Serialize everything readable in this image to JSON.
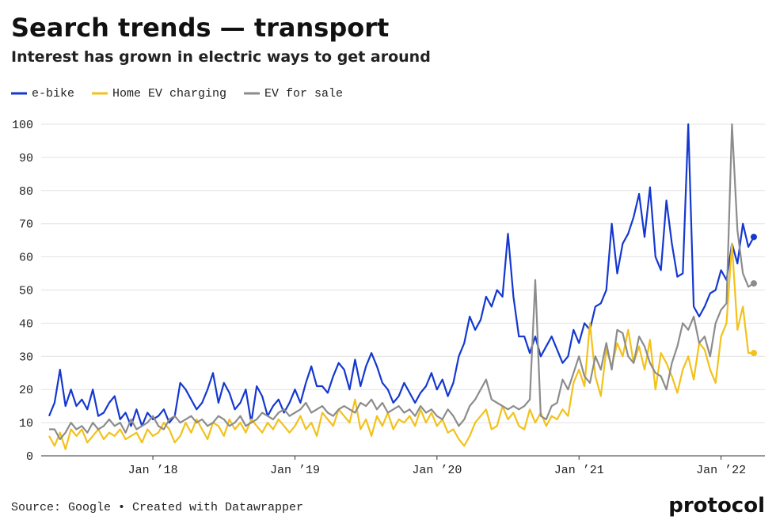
{
  "chart_data": {
    "type": "line",
    "title": "Search trends — transport",
    "subtitle": "Interest has grown in electric ways to get around",
    "source": "Source: Google • Created with Datawrapper",
    "brand": "protocol",
    "categories": [
      null,
      null,
      null,
      null,
      null,
      null,
      null,
      null,
      null,
      null,
      null,
      null,
      null,
      null,
      null,
      null,
      null,
      null,
      null,
      "Jan ’18",
      null,
      null,
      null,
      null,
      null,
      null,
      null,
      null,
      null,
      null,
      null,
      null,
      null,
      null,
      null,
      null,
      null,
      null,
      null,
      null,
      null,
      null,
      null,
      null,
      null,
      "Jan ’19",
      null,
      null,
      null,
      null,
      null,
      null,
      null,
      null,
      null,
      null,
      null,
      null,
      null,
      null,
      null,
      null,
      null,
      null,
      null,
      null,
      null,
      null,
      null,
      null,
      null,
      "Jan ’20",
      null,
      null,
      null,
      null,
      null,
      null,
      null,
      null,
      null,
      null,
      null,
      null,
      null,
      null,
      null,
      null,
      null,
      null,
      null,
      null,
      null,
      null,
      null,
      null,
      null,
      "Jan ’21",
      null,
      null,
      null,
      null,
      null,
      null,
      null,
      null,
      null,
      null,
      null,
      null,
      null,
      null,
      null,
      null,
      null,
      null,
      null,
      null,
      null,
      null,
      null,
      null,
      null,
      "Jan ’22",
      null,
      null,
      null,
      null,
      null,
      null
    ],
    "series": [
      {
        "name": "e-bike",
        "color": "#1438d0",
        "values": [
          12,
          16,
          26,
          15,
          20,
          15,
          17,
          14,
          20,
          12,
          13,
          16,
          18,
          11,
          13,
          9,
          14,
          9,
          13,
          11,
          12,
          14,
          10,
          12,
          22,
          20,
          17,
          14,
          16,
          20,
          25,
          16,
          22,
          19,
          14,
          16,
          20,
          10,
          21,
          18,
          12,
          15,
          17,
          13,
          16,
          20,
          16,
          22,
          27,
          21,
          21,
          19,
          24,
          28,
          26,
          20,
          29,
          21,
          27,
          31,
          27,
          22,
          20,
          16,
          18,
          22,
          19,
          16,
          19,
          21,
          25,
          20,
          23,
          18,
          22,
          30,
          34,
          42,
          38,
          41,
          48,
          45,
          50,
          48,
          67,
          48,
          36,
          36,
          31,
          36,
          30,
          33,
          36,
          32,
          28,
          30,
          38,
          34,
          40,
          38,
          45,
          46,
          50,
          70,
          55,
          64,
          67,
          72,
          79,
          66,
          81,
          60,
          56,
          77,
          64,
          54,
          55,
          100,
          45,
          42,
          45,
          49,
          50,
          56,
          53,
          64,
          58,
          70,
          63,
          66
        ]
      },
      {
        "name": "Home EV charging",
        "color": "#f2c21b",
        "values": [
          6,
          3,
          7,
          2,
          8,
          6,
          8,
          4,
          6,
          8,
          5,
          7,
          6,
          8,
          5,
          6,
          7,
          4,
          8,
          6,
          7,
          10,
          8,
          4,
          6,
          10,
          7,
          11,
          8,
          5,
          10,
          9,
          6,
          11,
          8,
          10,
          7,
          11,
          9,
          7,
          10,
          8,
          11,
          9,
          7,
          9,
          12,
          8,
          10,
          6,
          13,
          11,
          9,
          14,
          12,
          10,
          17,
          8,
          11,
          6,
          12,
          9,
          13,
          8,
          11,
          10,
          12,
          9,
          14,
          10,
          13,
          9,
          11,
          7,
          8,
          5,
          3,
          6,
          10,
          12,
          14,
          8,
          9,
          15,
          11,
          13,
          9,
          8,
          14,
          10,
          13,
          9,
          12,
          11,
          14,
          12,
          22,
          26,
          21,
          40,
          24,
          18,
          32,
          27,
          34,
          30,
          38,
          28,
          33,
          26,
          35,
          20,
          31,
          28,
          24,
          19,
          26,
          30,
          23,
          34,
          32,
          26,
          22,
          36,
          40,
          64,
          38,
          45,
          31,
          31
        ]
      },
      {
        "name": "EV for sale",
        "color": "#8c8c8c",
        "values": [
          8,
          8,
          5,
          7,
          10,
          8,
          9,
          7,
          10,
          8,
          9,
          11,
          9,
          10,
          7,
          11,
          8,
          9,
          10,
          12,
          9,
          8,
          11,
          12,
          10,
          11,
          12,
          10,
          11,
          9,
          10,
          12,
          11,
          9,
          10,
          12,
          9,
          10,
          11,
          13,
          12,
          11,
          13,
          14,
          12,
          13,
          14,
          16,
          13,
          14,
          15,
          13,
          12,
          14,
          15,
          14,
          13,
          16,
          15,
          17,
          14,
          16,
          13,
          14,
          15,
          13,
          14,
          12,
          15,
          13,
          14,
          12,
          11,
          14,
          12,
          9,
          11,
          15,
          17,
          20,
          23,
          17,
          16,
          15,
          14,
          15,
          14,
          15,
          17,
          53,
          12,
          11,
          15,
          16,
          23,
          20,
          25,
          30,
          24,
          22,
          30,
          26,
          34,
          26,
          38,
          37,
          30,
          28,
          36,
          33,
          28,
          25,
          24,
          20,
          28,
          33,
          40,
          38,
          42,
          34,
          36,
          30,
          40,
          44,
          46,
          100,
          68,
          55,
          51,
          52
        ]
      }
    ],
    "ylim": [
      0,
      100
    ],
    "yticks": [
      0,
      10,
      20,
      30,
      40,
      50,
      60,
      70,
      80,
      90,
      100
    ],
    "grid": true,
    "legend": "top-left"
  }
}
